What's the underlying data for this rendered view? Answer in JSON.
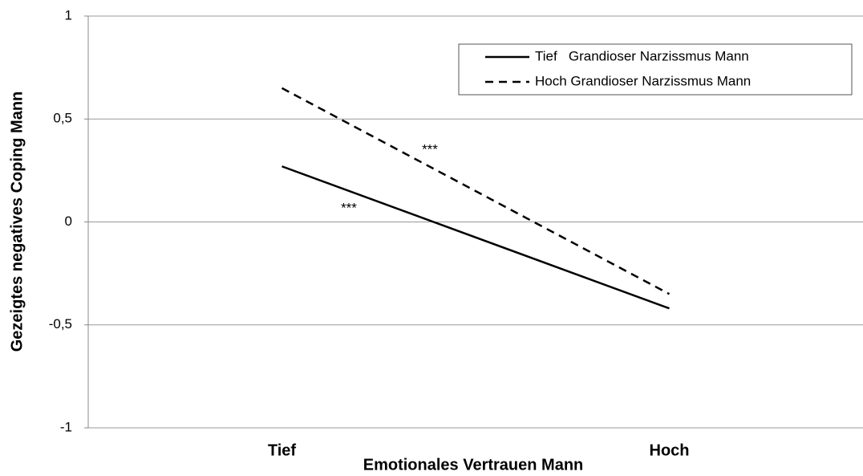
{
  "chart_data": {
    "type": "line",
    "categories": [
      "Tief",
      "Hoch"
    ],
    "series": [
      {
        "name": "Tief   Grandioser Narzissmus Mann",
        "color": "#000000",
        "line_style": "solid",
        "values": [
          0.27,
          -0.42
        ]
      },
      {
        "name": "Hoch Grandioser Narzissmus Mann",
        "color": "#000000",
        "line_style": "dashed",
        "values": [
          0.65,
          -0.35
        ]
      }
    ],
    "xlabel": "Emotionales Vertrauen Mann",
    "ylabel": "Gezeigtes negatives Coping Mann",
    "ylim": [
      -1,
      1
    ],
    "yticks": [
      -1,
      {
        "value": -0.5,
        "label": "-0,5"
      },
      0,
      {
        "value": 0.5,
        "label": "0,5"
      },
      1
    ],
    "grid": true,
    "legend": "upper right",
    "annotations": [
      "***",
      "***"
    ]
  }
}
